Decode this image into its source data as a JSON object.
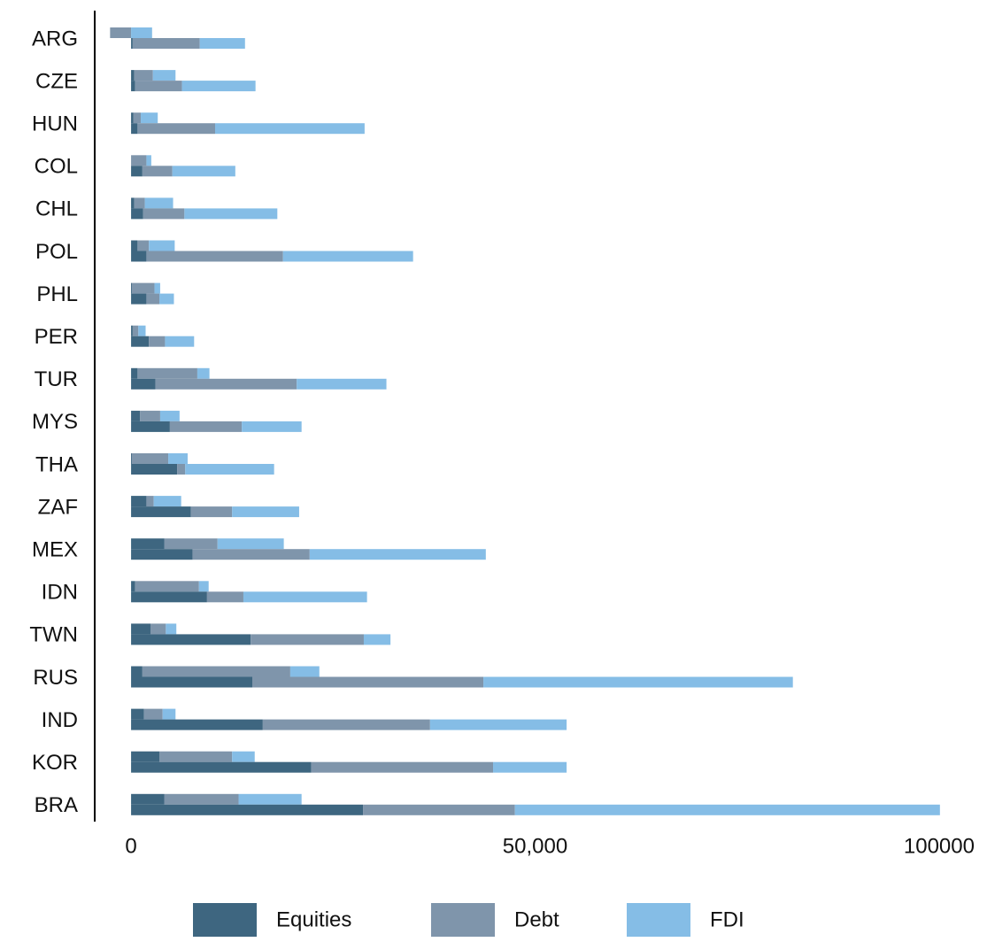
{
  "chart_data": {
    "type": "bar",
    "orientation": "horizontal",
    "categories": [
      "ARG",
      "CZE",
      "HUN",
      "COL",
      "CHL",
      "POL",
      "PHL",
      "PER",
      "TUR",
      "MYS",
      "THA",
      "ZAF",
      "MEX",
      "IDN",
      "TWN",
      "RUS",
      "IND",
      "KOR",
      "BRA"
    ],
    "series": [
      {
        "name": "Equities",
        "color": "#3e6680",
        "values_upper": [
          0,
          400,
          300,
          0,
          400,
          800,
          100,
          200,
          800,
          1100,
          100,
          1900,
          4100,
          500,
          2400,
          1400,
          1600,
          3500,
          4100
        ],
        "values": [
          200,
          500,
          800,
          1400,
          1500,
          1900,
          1900,
          2200,
          3000,
          4800,
          5700,
          7400,
          7600,
          9400,
          14800,
          15000,
          16300,
          22300,
          28700
        ]
      },
      {
        "name": "Debt",
        "color": "#7f95ab",
        "values_upper": [
          -2600,
          2300,
          900,
          1900,
          1300,
          1400,
          2800,
          700,
          7400,
          2500,
          4500,
          900,
          6600,
          7900,
          1900,
          18300,
          2300,
          9000,
          9200
        ],
        "values": [
          8300,
          5800,
          9600,
          3700,
          5100,
          16900,
          1600,
          2000,
          17500,
          8900,
          1000,
          5100,
          14500,
          4500,
          14000,
          28600,
          20700,
          22500,
          18800
        ]
      },
      {
        "name": "FDI",
        "color": "#85bde6",
        "values_upper": [
          2600,
          2800,
          2100,
          600,
          3500,
          3200,
          700,
          900,
          1500,
          2400,
          2400,
          3400,
          8200,
          1200,
          1300,
          3600,
          1600,
          2800,
          7800
        ],
        "values": [
          5600,
          9100,
          18500,
          7800,
          11500,
          16100,
          1800,
          3600,
          11100,
          7400,
          11000,
          8300,
          21800,
          15300,
          3300,
          38300,
          16900,
          9100,
          52600
        ]
      }
    ],
    "xlim": [
      -4500,
      104500
    ],
    "xticks": [
      0,
      {
        "value": 50000,
        "label": "50,000"
      },
      100000
    ],
    "grid": false
  }
}
